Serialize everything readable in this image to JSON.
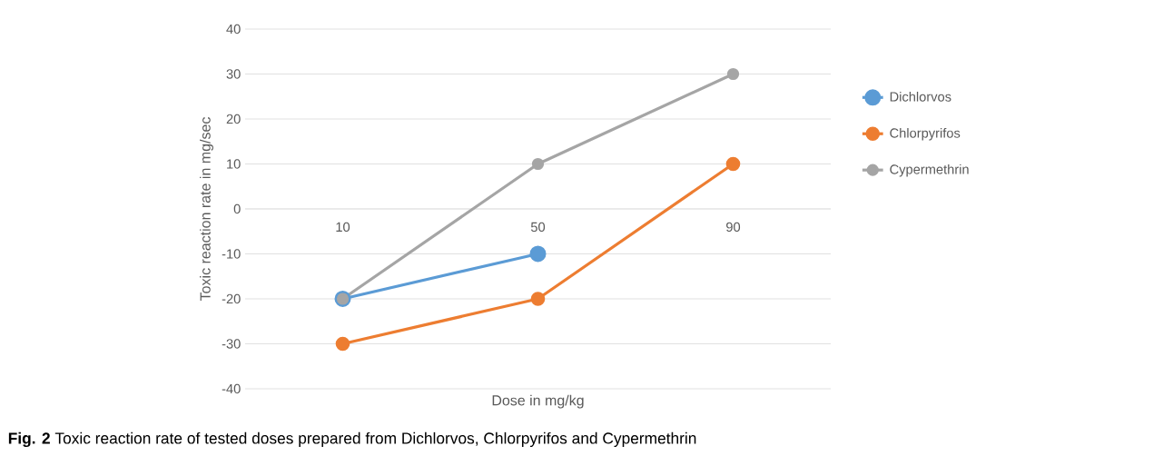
{
  "chart_data": {
    "type": "line",
    "xlabel": "Dose in mg/kg",
    "ylabel": "Toxic reaction rate in mg/sec",
    "categories": [
      "10",
      "50",
      "90"
    ],
    "series": [
      {
        "name": "Dichlorvos",
        "color": "#5b9bd5",
        "values": [
          -20,
          -10,
          null
        ]
      },
      {
        "name": "Chlorpyrifos",
        "color": "#ed7d31",
        "values": [
          -30,
          -20,
          10
        ]
      },
      {
        "name": "Cypermethrin",
        "color": "#a5a5a5",
        "values": [
          -20,
          10,
          30
        ]
      }
    ],
    "ylim": [
      -40,
      40
    ],
    "yticks": [
      -40,
      -30,
      -20,
      -10,
      0,
      10,
      20,
      30,
      40
    ],
    "grid": "y",
    "legend": "right",
    "marker": "circle",
    "line_style": "solid",
    "annotations": [
      "**Fig. 2** Toxic reaction rate of tested doses prepared from Dichlorvos, Chlorpyrifos and Cypermethrin"
    ]
  }
}
